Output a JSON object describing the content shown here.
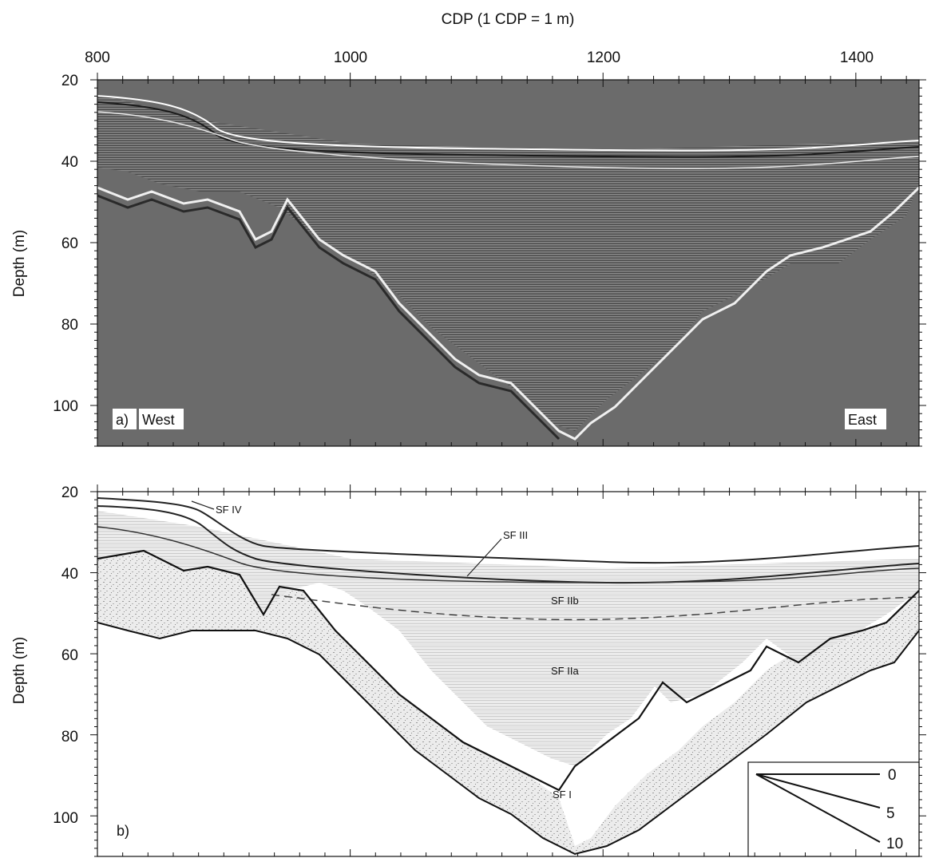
{
  "figure": {
    "x_axis_title": "CDP (1 CDP = 1 m)",
    "y_axis_title": "Depth (m)",
    "x_ticks": [
      "800",
      "1000",
      "1200",
      "1400"
    ],
    "y_ticks": [
      "20",
      "40",
      "60",
      "80",
      "100"
    ],
    "xlim": [
      800,
      1450
    ],
    "ylim": [
      20,
      110
    ]
  },
  "panel_a": {
    "label": "a)",
    "west_label": "West",
    "east_label": "East",
    "background_color": "#6b6b6b"
  },
  "panel_b": {
    "label": "b)",
    "background_color": "#f3f3f3",
    "unit_labels": [
      "SF IV",
      "SF III",
      "SF IIb",
      "SF IIa",
      "SF I"
    ],
    "legend_ticks": [
      "0",
      "5",
      "10"
    ]
  }
}
